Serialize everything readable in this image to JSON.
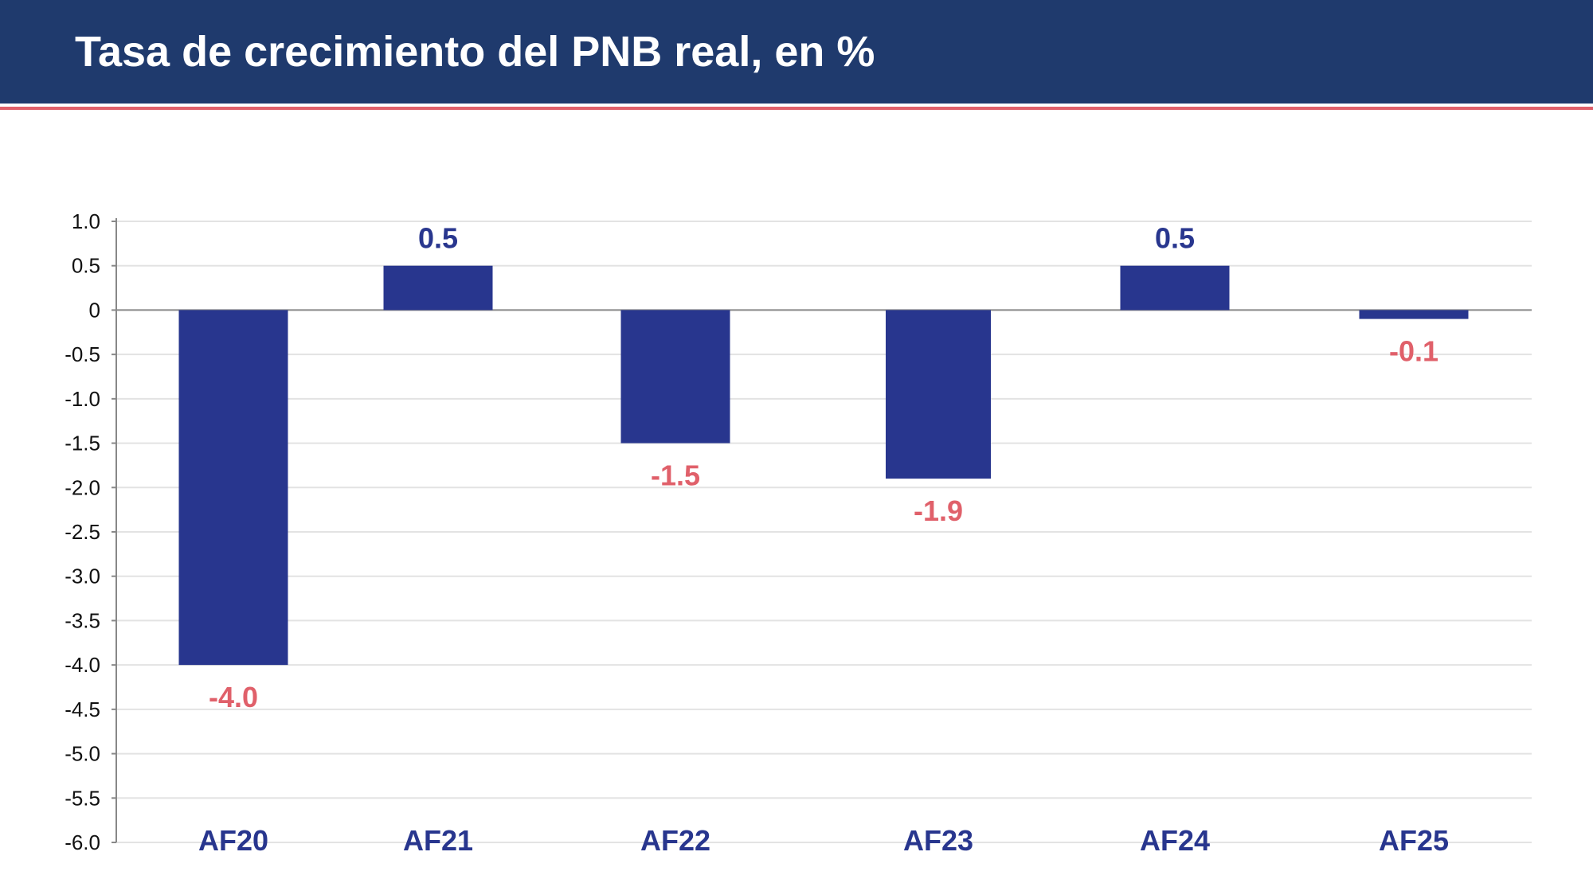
{
  "header": {
    "title": "Tasa de crecimiento del PNB real, en %"
  },
  "colors": {
    "header_bg": "#1f3a6d",
    "accent_line": "#e0606a",
    "bar": "#28368e",
    "positive_label": "#28368e",
    "negative_label": "#e0606a",
    "category_label": "#28368e",
    "grid": "#e3e3e3",
    "axis": "#888888"
  },
  "chart_data": {
    "type": "bar",
    "categories": [
      "AF20",
      "AF21",
      "AF22",
      "AF23",
      "AF24",
      "AF25"
    ],
    "values": [
      -4.0,
      0.5,
      -1.5,
      -1.9,
      0.5,
      -0.1
    ],
    "data_labels": [
      "-4.0",
      "0.5",
      "-1.5",
      "-1.9",
      "0.5",
      "-0.1"
    ],
    "ylim": [
      -6.0,
      1.0
    ],
    "yticks": [
      1.0,
      0.5,
      0,
      -0.5,
      -1.0,
      -1.5,
      -2.0,
      -2.5,
      -3.0,
      -3.5,
      -4.0,
      -4.5,
      -5.0,
      -5.5,
      -6.0
    ],
    "ytick_labels": [
      "1.0",
      "0.5",
      "0",
      "-0.5",
      "-1.0",
      "-1.5",
      "-2.0",
      "-2.5",
      "-3.0",
      "-3.5",
      "-4.0",
      "-4.5",
      "-5.0",
      "-5.5",
      "-6.0"
    ],
    "grid": true,
    "title": "Tasa de crecimiento del PNB real, en %",
    "xlabel": "",
    "ylabel": ""
  }
}
